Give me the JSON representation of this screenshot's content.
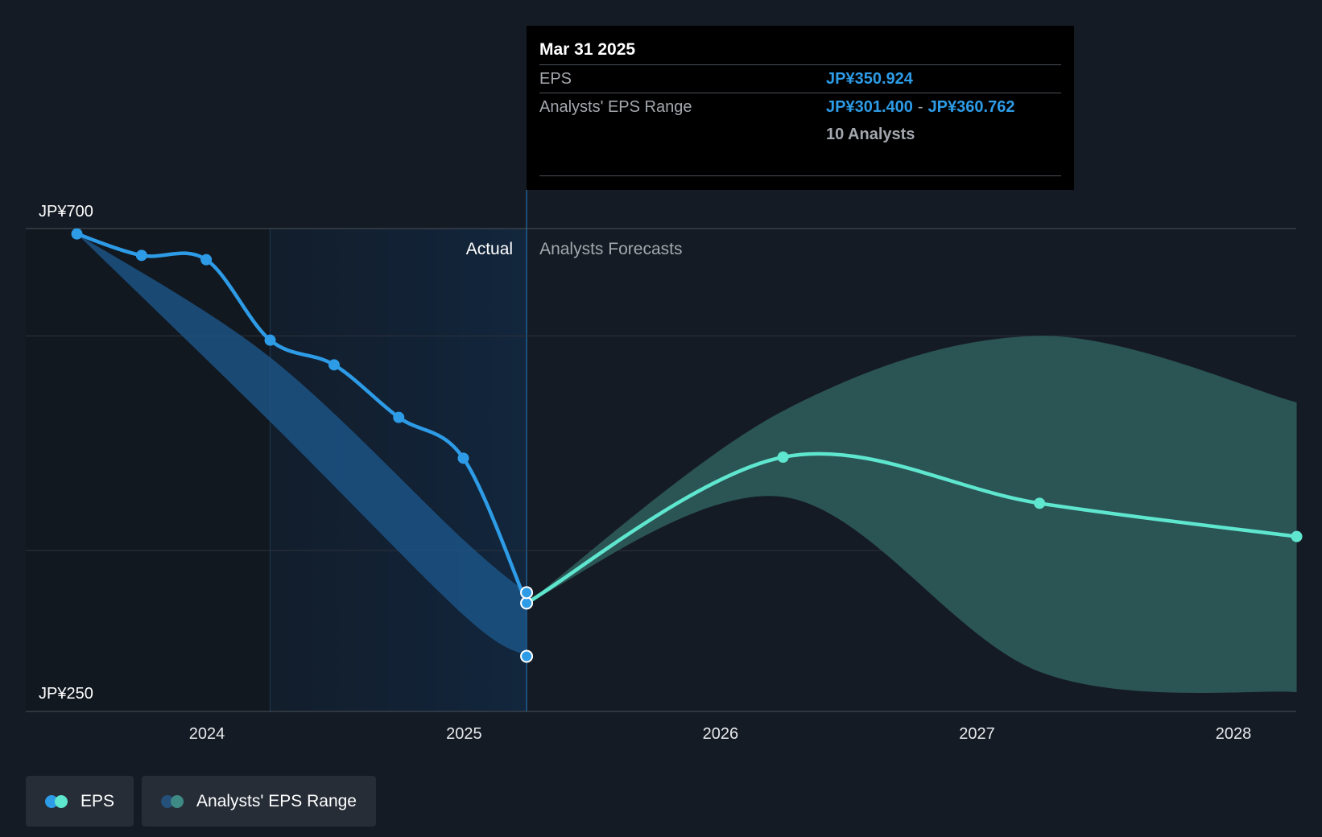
{
  "chart_data": {
    "type": "line",
    "y_axis": {
      "min": 250,
      "max": 700,
      "min_label": "JP¥250",
      "max_label": "JP¥700",
      "gridlines": [
        700,
        600,
        400
      ]
    },
    "x_axis": {
      "ticks": [
        "2024",
        "2025",
        "2026",
        "2027",
        "2028"
      ]
    },
    "section_labels": {
      "actual": "Actual",
      "forecast": "Analysts Forecasts"
    },
    "series": [
      {
        "name": "EPS",
        "color": "#2d9be6",
        "points": [
          {
            "date": "2023-06-30",
            "value": 695
          },
          {
            "date": "2023-09-30",
            "value": 675
          },
          {
            "date": "2023-12-31",
            "value": 671
          },
          {
            "date": "2024-03-31",
            "value": 596
          },
          {
            "date": "2024-06-30",
            "value": 573
          },
          {
            "date": "2024-09-30",
            "value": 524
          },
          {
            "date": "2024-12-31",
            "value": 486
          },
          {
            "date": "2025-03-31",
            "value": 351
          }
        ]
      },
      {
        "name": "EPS",
        "color": "#5ee6cf",
        "points": [
          {
            "date": "2025-03-31",
            "value": 351
          },
          {
            "date": "2026-03-31",
            "value": 487
          },
          {
            "date": "2027-03-31",
            "value": 444
          },
          {
            "date": "2028-03-31",
            "value": 413
          }
        ]
      }
    ],
    "range": {
      "name": "Analysts' EPS Range",
      "actual": [
        {
          "date": "2023-06-30",
          "low": 695,
          "high": 695
        },
        {
          "date": "2024-03-31",
          "low": 520,
          "high": 580
        },
        {
          "date": "2024-12-31",
          "low": 340,
          "high": 410
        },
        {
          "date": "2025-03-31",
          "low": 301.4,
          "high": 360.762
        }
      ],
      "forecast": [
        {
          "date": "2025-03-31",
          "low": 351,
          "high": 351
        },
        {
          "date": "2026-03-31",
          "low": 450,
          "high": 530
        },
        {
          "date": "2027-03-31",
          "low": 287,
          "high": 600
        },
        {
          "date": "2028-03-31",
          "low": 268,
          "high": 538
        }
      ]
    },
    "highlight_region": {
      "from": "2024-03-31",
      "to": "2025-03-31"
    },
    "extra_markers": [
      {
        "date": "2025-03-31",
        "value": 360.762
      },
      {
        "date": "2025-03-31",
        "value": 301.4
      }
    ]
  },
  "tooltip": {
    "date": "Mar 31 2025",
    "eps_label": "EPS",
    "eps_value": "JP¥350.924",
    "range_label": "Analysts' EPS Range",
    "range_low": "JP¥301.400",
    "range_sep": "-",
    "range_high": "JP¥360.762",
    "analysts": "10 Analysts"
  },
  "legend": [
    {
      "label": "EPS",
      "dot_colors": [
        "#2d9be6",
        "#5ee6cf"
      ]
    },
    {
      "label": "Analysts' EPS Range",
      "dot_colors": [
        "#24507a",
        "#3f8a85"
      ]
    }
  ]
}
